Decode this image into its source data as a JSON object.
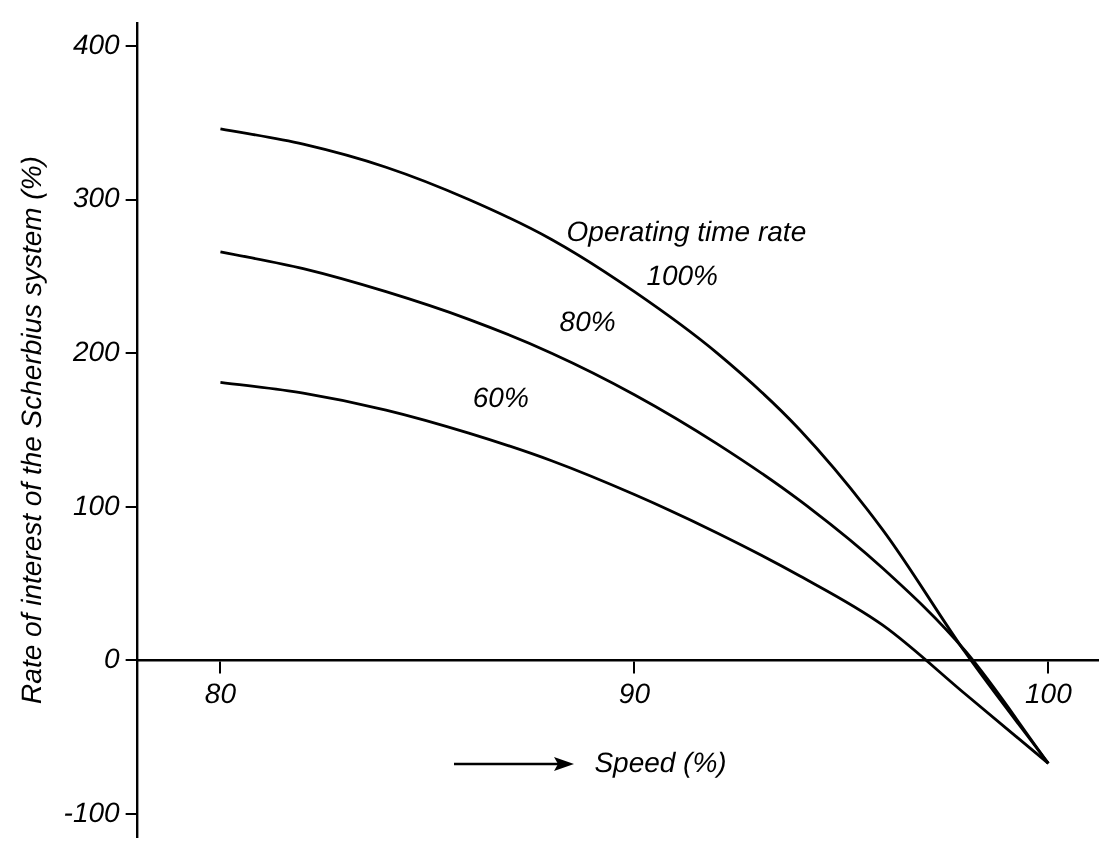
{
  "chart_data": {
    "type": "line",
    "xlabel": "Speed (%)",
    "ylabel": "Rate of interest of the Scherbius system (%)",
    "legend_title": "Operating time rate",
    "x": [
      80,
      82,
      84,
      86,
      88,
      90,
      92,
      94,
      96,
      98,
      100
    ],
    "series": [
      {
        "name": "100%",
        "color": "#000000",
        "values": [
          346,
          336,
          321,
          300,
          274,
          240,
          200,
          150,
          85,
          5,
          -67
        ]
      },
      {
        "name": "80%",
        "color": "#000000",
        "values": [
          266,
          255,
          240,
          222,
          200,
          173,
          141,
          104,
          60,
          6,
          -67
        ]
      },
      {
        "name": "60%",
        "color": "#000000",
        "values": [
          181,
          174,
          163,
          148,
          130,
          108,
          83,
          55,
          23,
          -22,
          -67
        ]
      }
    ],
    "xlim": [
      78,
      101.2
    ],
    "ylim": [
      -115,
      415
    ],
    "xticks": [
      80,
      90,
      100
    ],
    "yticks": [
      -100,
      0,
      100,
      200,
      300,
      400
    ],
    "grid": false,
    "legend": false,
    "marker": "none",
    "line_style": "solid"
  }
}
